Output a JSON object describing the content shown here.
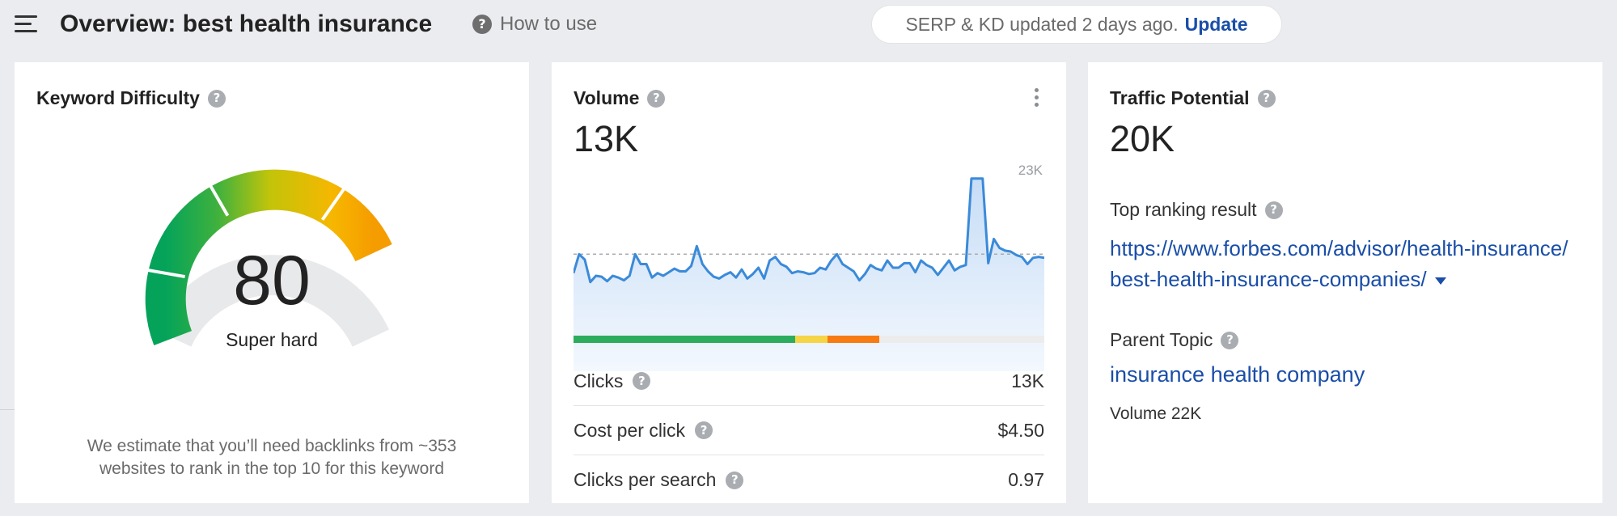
{
  "header": {
    "title": "Overview: best health insurance",
    "how_to_label": "How to use",
    "serp_status": "SERP & KD updated 2 days ago.",
    "update_label": "Update"
  },
  "icons": {
    "menu": "hamburger-menu-icon",
    "help": "question-mark-icon",
    "more": "vertical-dots-icon",
    "dropdown": "caret-down-icon"
  },
  "keyword_difficulty": {
    "title": "Keyword Difficulty",
    "score": "80",
    "label": "Super hard",
    "score_fraction": 0.8,
    "note": "We estimate that you’ll need backlinks from ~353 websites to rank in the top 10 for this keyword"
  },
  "volume": {
    "title": "Volume",
    "value": "13K",
    "chart_max_label": "23K",
    "distribution": [
      {
        "color": "#2cad5e",
        "fraction": 0.47
      },
      {
        "color": "#f5d547",
        "fraction": 0.07
      },
      {
        "color": "#f77a13",
        "fraction": 0.11
      }
    ],
    "metrics": [
      {
        "label": "Clicks",
        "value": "13K"
      },
      {
        "label": "Cost per click",
        "value": "$4.50"
      },
      {
        "label": "Clicks per search",
        "value": "0.97"
      }
    ]
  },
  "traffic_potential": {
    "title": "Traffic Potential",
    "value": "20K",
    "top_result_label": "Top ranking result",
    "top_result_url": "https://www.forbes.com/advisor/health-insurance/best-health-insurance-companies/",
    "parent_topic_label": "Parent Topic",
    "parent_topic": "insurance health company",
    "parent_volume": "Volume 22K"
  },
  "chart_data": {
    "type": "area",
    "title": "",
    "xlabel": "",
    "ylabel": "",
    "ylim": [
      0,
      23000
    ],
    "y_max_label": "23K",
    "average": 13000,
    "color": "#3b8ad9",
    "values": [
      10900,
      13000,
      12400,
      9900,
      10600,
      10500,
      10000,
      10600,
      10400,
      10100,
      10600,
      13000,
      11900,
      11900,
      10400,
      10900,
      10600,
      11000,
      11400,
      11100,
      11100,
      11700,
      13900,
      11900,
      11100,
      10500,
      10300,
      10700,
      11000,
      10400,
      11300,
      10300,
      10800,
      11500,
      10300,
      12300,
      12700,
      11900,
      11600,
      10900,
      11100,
      11000,
      10800,
      10900,
      11500,
      11300,
      12300,
      13000,
      11900,
      11500,
      11100,
      10100,
      10800,
      11800,
      11400,
      11200,
      12300,
      11500,
      11500,
      12000,
      12000,
      11000,
      12300,
      11800,
      11500,
      10700,
      11500,
      12300,
      11200,
      11600,
      11800,
      21400,
      21400,
      21400,
      12000,
      14700,
      13700,
      13400,
      13300,
      12900,
      12700,
      11900,
      12600,
      12700,
      12600
    ]
  }
}
